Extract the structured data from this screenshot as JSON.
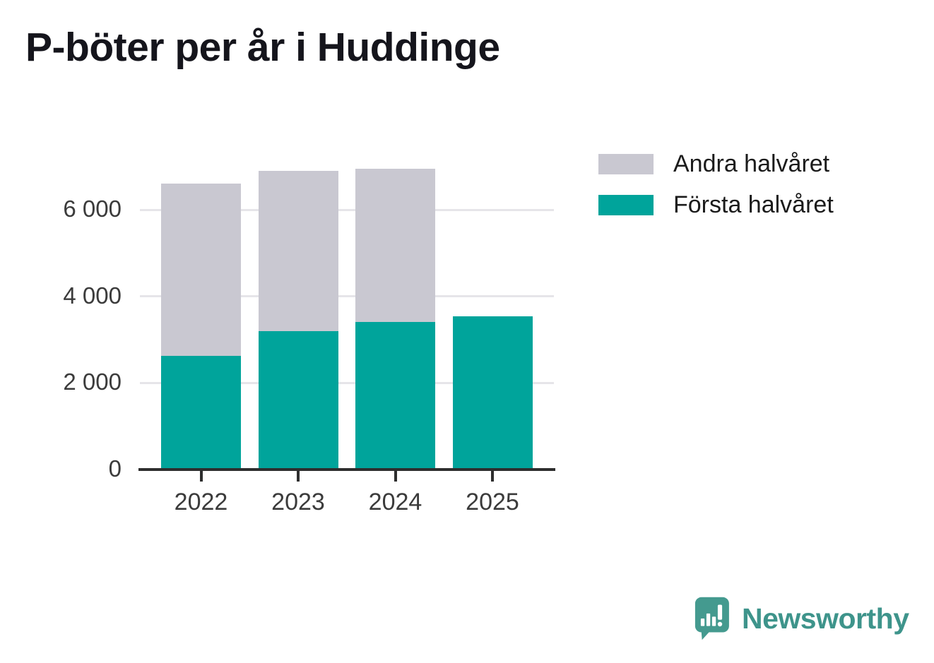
{
  "title": "P-böter per år i Huddinge",
  "legend": {
    "items": [
      {
        "label": "Andra halvåret",
        "color": "#c9c8d1"
      },
      {
        "label": "Första halvåret",
        "color": "#00a49b"
      }
    ]
  },
  "chart_data": {
    "type": "bar",
    "stacked": true,
    "title": "P-böter per år i Huddinge",
    "categories": [
      "2022",
      "2023",
      "2024",
      "2025"
    ],
    "series": [
      {
        "name": "Första halvåret",
        "color": "#00a49b",
        "values": [
          2620,
          3200,
          3400,
          3530
        ]
      },
      {
        "name": "Andra halvåret",
        "color": "#c9c8d1",
        "values": [
          3990,
          3700,
          3550,
          0
        ]
      }
    ],
    "ylim": [
      0,
      7000
    ],
    "yticks": [
      0,
      2000,
      4000,
      6000
    ],
    "ytick_labels": [
      "0",
      "2 000",
      "4 000",
      "6 000"
    ],
    "grid": "horizontal",
    "legend_position": "top-right",
    "xlabel": "",
    "ylabel": ""
  },
  "footer": {
    "brand": "Newsworthy"
  },
  "colors": {
    "first_half": "#00a49b",
    "second_half": "#c9c8d1",
    "axis": "#2e2e2e",
    "gridline": "#e6e5e9",
    "brand": "#3e948b"
  }
}
